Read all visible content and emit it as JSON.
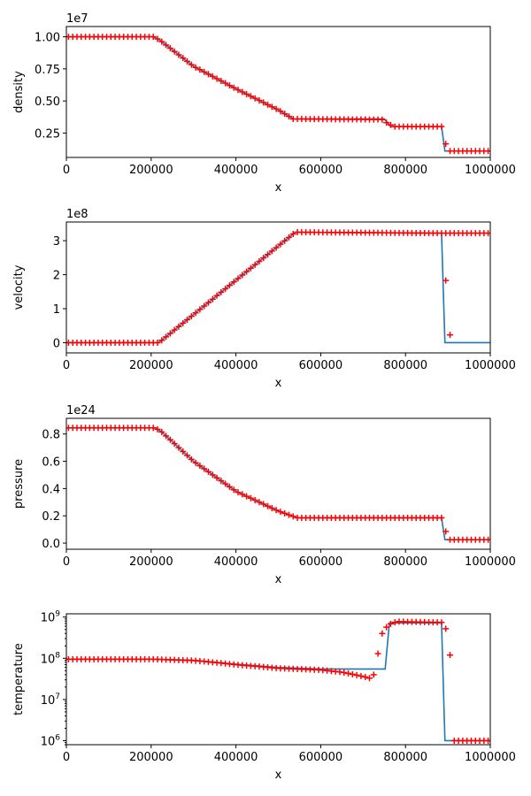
{
  "chart_data": [
    {
      "type": "line",
      "ylabel": "density",
      "xlabel": "x",
      "offset_text": "1e7",
      "yscale": "linear",
      "xlim": [
        0,
        1000000
      ],
      "ylim": [
        0.06,
        1.08
      ],
      "x_ticks": [
        0,
        200000,
        400000,
        600000,
        800000,
        1000000
      ],
      "x_tick_labels": [
        "0",
        "200000",
        "400000",
        "600000",
        "800000",
        "1000000"
      ],
      "y_ticks": [
        0.25,
        0.5,
        0.75,
        1.0
      ],
      "y_tick_labels": [
        "0.25",
        "0.50",
        "0.75",
        "1.00"
      ],
      "grid": false,
      "series": [
        {
          "kind": "line",
          "color": "#1f77b4",
          "points": [
            [
              0,
              1.0
            ],
            [
              205000,
              1.0
            ],
            [
              220000,
              0.975
            ],
            [
              300000,
              0.77
            ],
            [
              400000,
              0.595
            ],
            [
              500000,
              0.43
            ],
            [
              535000,
              0.36
            ],
            [
              750000,
              0.36
            ],
            [
              765000,
              0.3
            ],
            [
              885000,
              0.3
            ],
            [
              893000,
              0.11
            ],
            [
              1000000,
              0.11
            ]
          ]
        },
        {
          "kind": "markers",
          "marker": "+",
          "color": "#ff0000",
          "x_start": 5000,
          "x_step": 10000,
          "count": 100,
          "points": [
            [
              0,
              1.0
            ],
            [
              205000,
              1.0
            ],
            [
              220000,
              0.975
            ],
            [
              300000,
              0.77
            ],
            [
              400000,
              0.595
            ],
            [
              500000,
              0.43
            ],
            [
              535000,
              0.36
            ],
            [
              745000,
              0.355
            ],
            [
              760000,
              0.32
            ],
            [
              775000,
              0.3
            ],
            [
              885000,
              0.3
            ],
            [
              892000,
              0.2
            ],
            [
              900000,
              0.11
            ],
            [
              1000000,
              0.11
            ]
          ]
        }
      ]
    },
    {
      "type": "line",
      "ylabel": "velocity",
      "xlabel": "x",
      "offset_text": "1e8",
      "yscale": "linear",
      "xlim": [
        0,
        1000000
      ],
      "ylim": [
        -0.3,
        3.55
      ],
      "x_ticks": [
        0,
        200000,
        400000,
        600000,
        800000,
        1000000
      ],
      "x_tick_labels": [
        "0",
        "200000",
        "400000",
        "600000",
        "800000",
        "1000000"
      ],
      "y_ticks": [
        0,
        1,
        2,
        3
      ],
      "y_tick_labels": [
        "0",
        "1",
        "2",
        "3"
      ],
      "grid": false,
      "series": [
        {
          "kind": "line",
          "color": "#1f77b4",
          "points": [
            [
              0,
              0
            ],
            [
              218000,
              0
            ],
            [
              540000,
              3.25
            ],
            [
              885000,
              3.22
            ],
            [
              893000,
              0
            ],
            [
              1000000,
              0
            ]
          ]
        },
        {
          "kind": "markers",
          "marker": "+",
          "color": "#ff0000",
          "x_start": 5000,
          "x_step": 10000,
          "count": 100,
          "points": [
            [
              0,
              0
            ],
            [
              218000,
              0
            ],
            [
              540000,
              3.25
            ],
            [
              885000,
              3.22
            ],
            [
              1000000,
              3.22
            ]
          ],
          "extra_points": [
            [
              895000,
              1.83
            ],
            [
              905000,
              0.23
            ]
          ]
        }
      ]
    },
    {
      "type": "line",
      "ylabel": "pressure",
      "xlabel": "x",
      "offset_text": "1e24",
      "yscale": "linear",
      "xlim": [
        0,
        1000000
      ],
      "ylim": [
        -0.045,
        0.915
      ],
      "x_ticks": [
        0,
        200000,
        400000,
        600000,
        800000,
        1000000
      ],
      "x_tick_labels": [
        "0",
        "200000",
        "400000",
        "600000",
        "800000",
        "1000000"
      ],
      "y_ticks": [
        0.0,
        0.2,
        0.4,
        0.6,
        0.8
      ],
      "y_tick_labels": [
        "0.0",
        "0.2",
        "0.4",
        "0.6",
        "0.8"
      ],
      "grid": false,
      "series": [
        {
          "kind": "line",
          "color": "#1f77b4",
          "points": [
            [
              0,
              0.845
            ],
            [
              210000,
              0.845
            ],
            [
              225000,
              0.815
            ],
            [
              300000,
              0.6
            ],
            [
              400000,
              0.38
            ],
            [
              500000,
              0.235
            ],
            [
              545000,
              0.185
            ],
            [
              885000,
              0.185
            ],
            [
              893000,
              0.025
            ],
            [
              1000000,
              0.025
            ]
          ]
        },
        {
          "kind": "markers",
          "marker": "+",
          "color": "#ff0000",
          "x_start": 5000,
          "x_step": 10000,
          "count": 100,
          "points": [
            [
              0,
              0.845
            ],
            [
              210000,
              0.845
            ],
            [
              225000,
              0.815
            ],
            [
              300000,
              0.6
            ],
            [
              400000,
              0.38
            ],
            [
              500000,
              0.235
            ],
            [
              545000,
              0.185
            ],
            [
              885000,
              0.185
            ],
            [
              893000,
              0.11
            ],
            [
              900000,
              0.025
            ],
            [
              1000000,
              0.025
            ]
          ]
        }
      ]
    },
    {
      "type": "line",
      "ylabel": "temperature",
      "xlabel": "x",
      "offset_text": "",
      "yscale": "log",
      "xlim": [
        0,
        1000000
      ],
      "ylim": [
        800000,
        1200000000
      ],
      "x_ticks": [
        0,
        200000,
        400000,
        600000,
        800000,
        1000000
      ],
      "x_tick_labels": [
        "0",
        "200000",
        "400000",
        "600000",
        "800000",
        "1000000"
      ],
      "y_ticks": [
        1000000,
        10000000,
        100000000,
        1000000000
      ],
      "y_tick_labels": [
        "10^6",
        "10^7",
        "10^8",
        "10^9"
      ],
      "grid": false,
      "series": [
        {
          "kind": "line",
          "color": "#1f77b4",
          "points": [
            [
              0,
              95000000
            ],
            [
              200000,
              95000000
            ],
            [
              300000,
              90000000
            ],
            [
              400000,
              72000000
            ],
            [
              500000,
              60000000
            ],
            [
              600000,
              55000000
            ],
            [
              752000,
              55000000
            ],
            [
              762000,
              720000000
            ],
            [
              885000,
              720000000
            ],
            [
              893000,
              1000000
            ],
            [
              1000000,
              1000000
            ]
          ]
        },
        {
          "kind": "markers",
          "marker": "+",
          "color": "#ff0000",
          "x_start": 5000,
          "x_step": 10000,
          "count": 100,
          "points": [
            [
              0,
              95000000
            ],
            [
              200000,
              95000000
            ],
            [
              300000,
              88000000
            ],
            [
              400000,
              70000000
            ],
            [
              500000,
              57000000
            ],
            [
              600000,
              52000000
            ],
            [
              650000,
              46000000
            ],
            [
              700000,
              36000000
            ],
            [
              715000,
              33000000
            ],
            [
              725000,
              40000000
            ],
            [
              735000,
              130000000
            ],
            [
              745000,
              400000000
            ],
            [
              760000,
              650000000
            ],
            [
              780000,
              780000000
            ],
            [
              885000,
              740000000
            ],
            [
              895000,
              520000000
            ],
            [
              905000,
              120000000
            ],
            [
              910000,
              1000000
            ],
            [
              1000000,
              1000000
            ]
          ]
        }
      ]
    }
  ]
}
